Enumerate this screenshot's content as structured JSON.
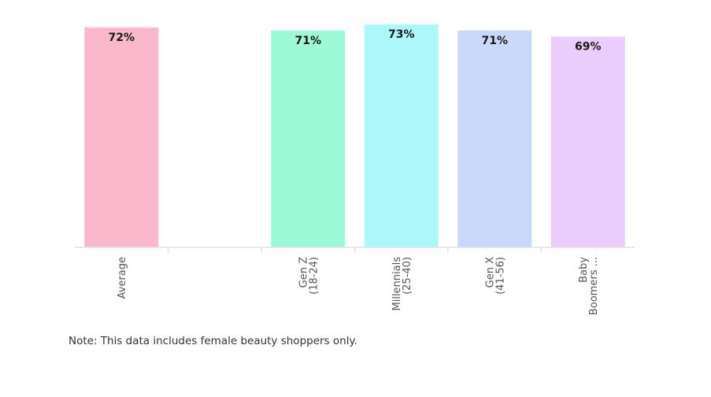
{
  "chart_data": {
    "type": "bar",
    "categories": [
      {
        "lines": [
          "Average"
        ],
        "value": 72,
        "color": "#f9b8cb",
        "value_label": "72%"
      },
      {
        "lines": [],
        "value": null,
        "color": null,
        "value_label": null
      },
      {
        "lines": [
          "Gen Z",
          "(18-24)"
        ],
        "value": 71,
        "color": "#9ef9d9",
        "value_label": "71%"
      },
      {
        "lines": [
          "Millennials",
          "(25-40)"
        ],
        "value": 73,
        "color": "#adf7fb",
        "value_label": "73%"
      },
      {
        "lines": [
          "Gen X",
          "(41-56)"
        ],
        "value": 71,
        "color": "#c8d9fc",
        "value_label": "71%"
      },
      {
        "lines": [
          "Baby",
          "Boomers ..."
        ],
        "value": 69,
        "color": "#eacdfc",
        "value_label": "69%"
      }
    ],
    "ylim": [
      0,
      73
    ],
    "grid": false,
    "legend": "none"
  },
  "note": "Note: This data includes female beauty shoppers only."
}
